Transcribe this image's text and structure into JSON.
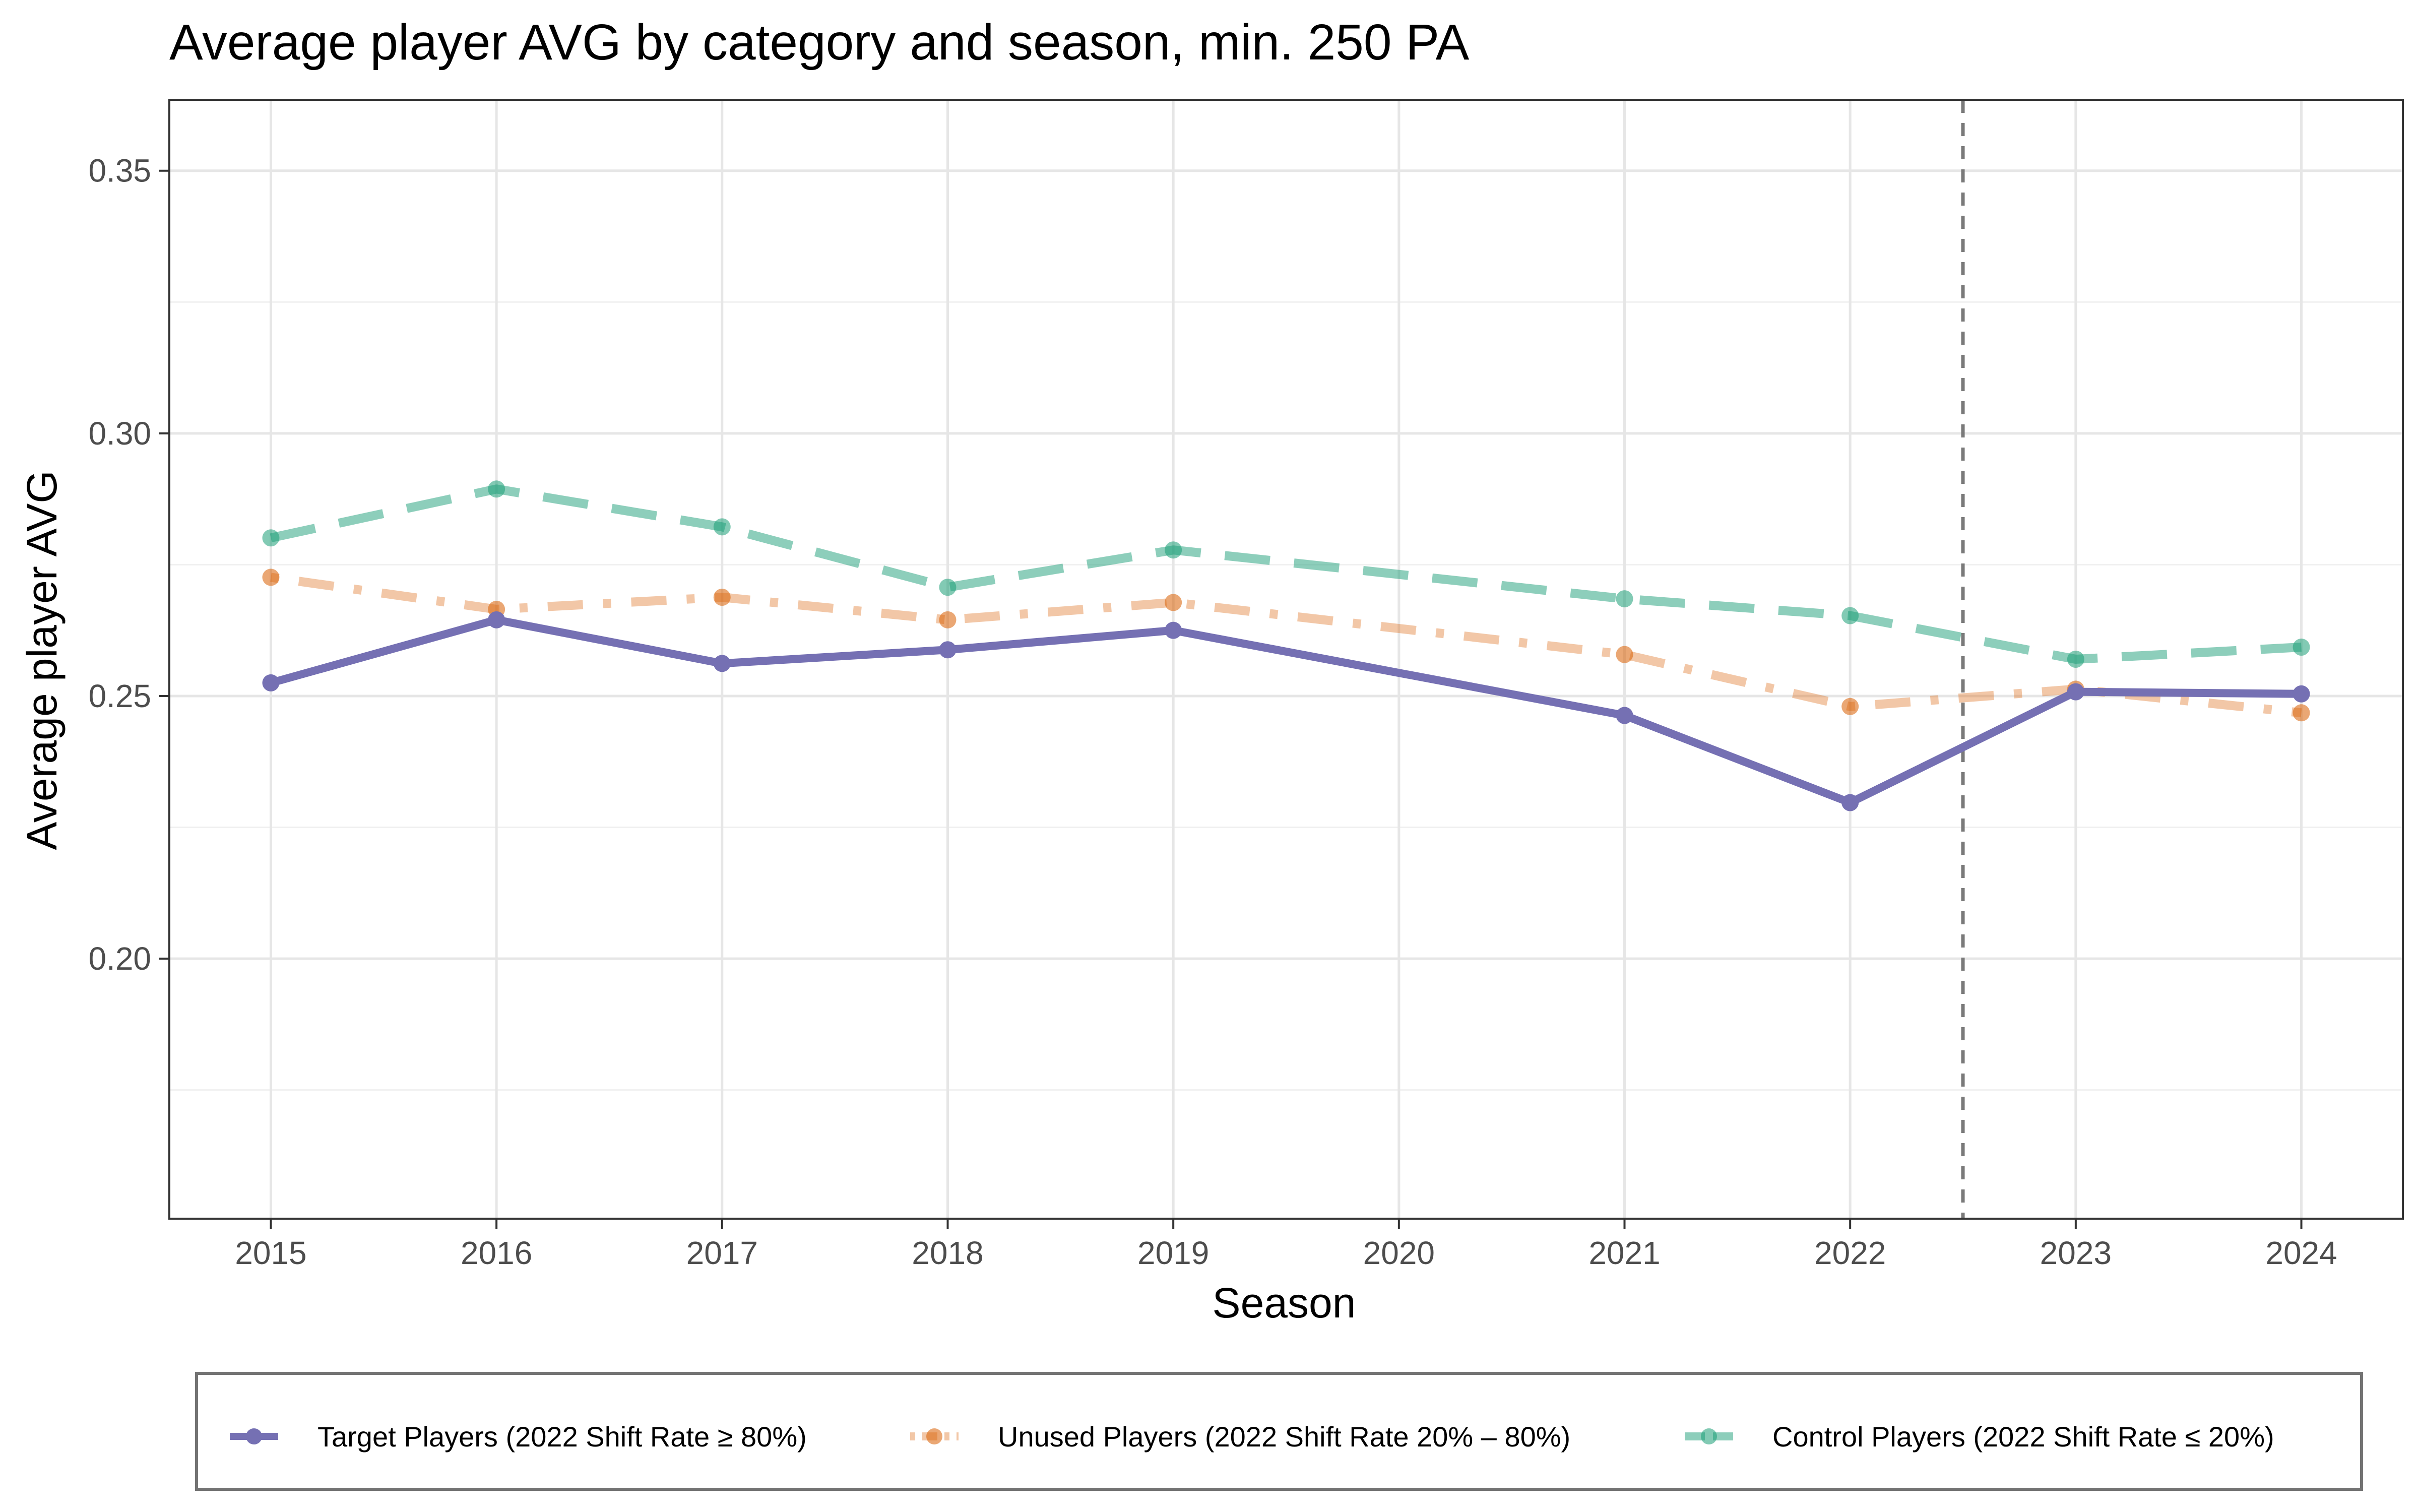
{
  "chart_data": {
    "type": "line",
    "title": "Average player AVG by category and season, min. 250 PA",
    "xlabel": "Season",
    "ylabel": "Average player AVG",
    "x": [
      2015,
      2016,
      2017,
      2018,
      2019,
      2020,
      2021,
      2022,
      2023,
      2024
    ],
    "x_ticks": [
      "2015",
      "2016",
      "2017",
      "2018",
      "2019",
      "2020",
      "2021",
      "2022",
      "2023",
      "2024"
    ],
    "y_ticks": [
      "0.20",
      "0.25",
      "0.30",
      "0.35"
    ],
    "y_tick_values": [
      0.2,
      0.25,
      0.3,
      0.35
    ],
    "xlim": [
      2014.55,
      2024.45
    ],
    "ylim": [
      0.1505,
      0.3635
    ],
    "grid": true,
    "vline": 2022.5,
    "legend_position": "bottom",
    "series": [
      {
        "name": "Target Players (2022 Shift Rate ≥ 80%)",
        "color": "#7570b3",
        "style": "solid",
        "x": [
          2015,
          2016,
          2017,
          2018,
          2019,
          2021,
          2022,
          2023,
          2024
        ],
        "values": [
          0.2525,
          0.2645,
          0.2562,
          0.2588,
          0.2625,
          0.2463,
          0.2297,
          0.2508,
          0.2504
        ]
      },
      {
        "name": "Unused Players (2022 Shift Rate 20% – 80%)",
        "color": "#d95f02",
        "style": "dotdash",
        "x": [
          2015,
          2016,
          2017,
          2018,
          2019,
          2021,
          2022,
          2023,
          2024
        ],
        "values": [
          0.2726,
          0.2665,
          0.2688,
          0.2645,
          0.2678,
          0.2579,
          0.248,
          0.2513,
          0.2468
        ]
      },
      {
        "name": "Control Players (2022 Shift Rate ≤ 20%)",
        "color": "#1b9e77",
        "style": "dashed",
        "x": [
          2015,
          2016,
          2017,
          2018,
          2019,
          2021,
          2022,
          2023,
          2024
        ],
        "values": [
          0.2801,
          0.2894,
          0.2822,
          0.2707,
          0.2778,
          0.2685,
          0.2653,
          0.257,
          0.2593
        ]
      }
    ]
  }
}
